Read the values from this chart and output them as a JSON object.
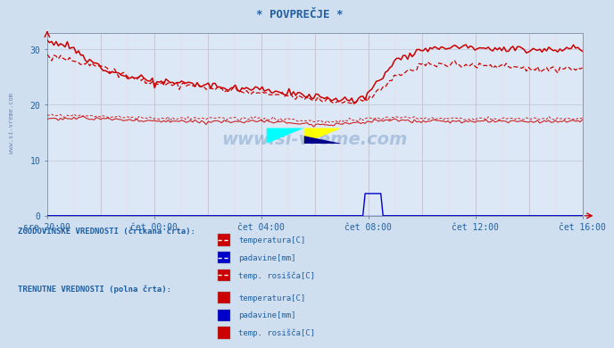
{
  "title": "* POVPREČJE *",
  "bg_color": "#d0dff0",
  "plot_bg_color": "#dce8f5",
  "grid_color_v": "#e8b0b0",
  "grid_color_h": "#c8ccd8",
  "text_color": "#2060a0",
  "red_color": "#cc0000",
  "blue_color": "#0000cc",
  "ylim": [
    0,
    33
  ],
  "yticks": [
    0,
    10,
    20,
    30
  ],
  "xtick_labels": [
    "sre 20:00",
    "čet 00:00",
    "čet 04:00",
    "čet 08:00",
    "čet 12:00",
    "čet 16:00"
  ],
  "watermark": "www.si-vreme.com",
  "legend_hist_label": "ZGODOVINSKE VREDNOSTI (črtkana črta):",
  "legend_curr_label": "TRENUTNE VREDNOSTI (polna črta):",
  "legend_items": [
    "temperatura[C]",
    "padavine[mm]",
    "temp. rosišča[C]"
  ],
  "legend_item_colors": [
    "#cc0000",
    "#0000cc",
    "#cc0000"
  ]
}
